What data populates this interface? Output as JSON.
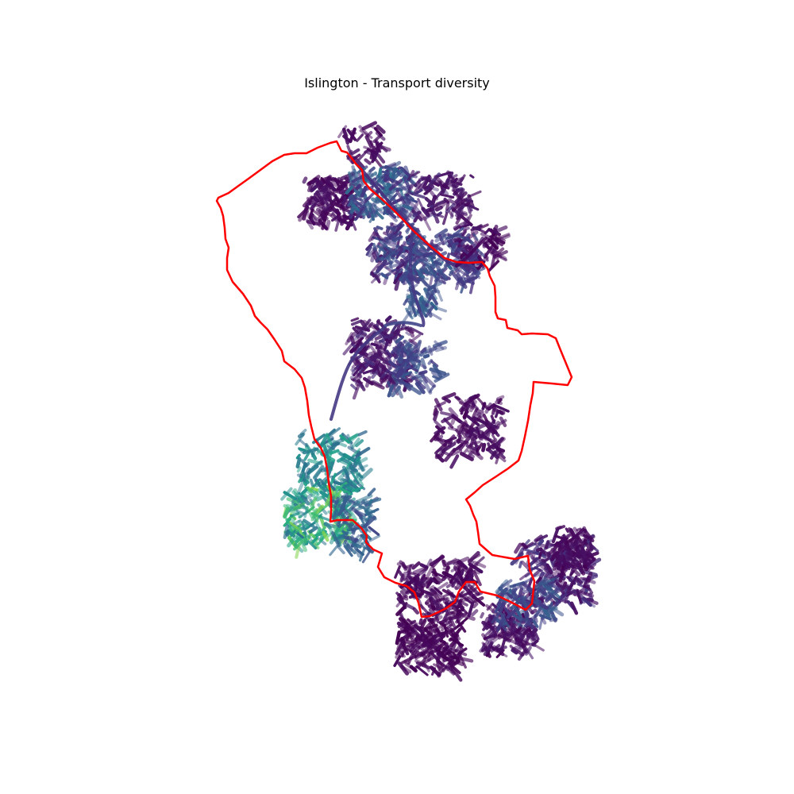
{
  "title": "Islington - Transport diversity",
  "colormap": "viridis",
  "boundary_color": "#ff0000",
  "street_color_min": "#440154",
  "street_color_max": "#b5de2b"
}
